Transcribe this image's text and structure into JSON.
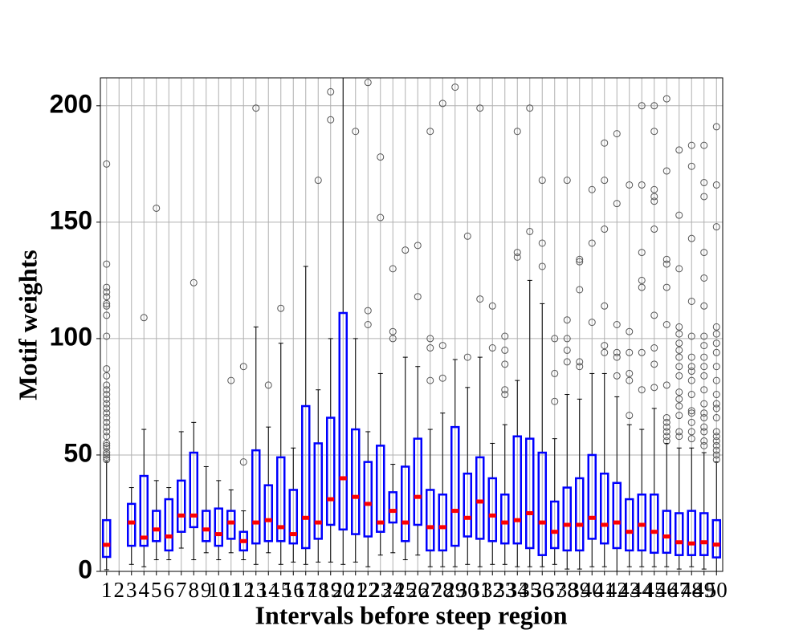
{
  "chart_data": {
    "type": "box",
    "x_label": "Intervals before steep region",
    "y_label": "Motif weights",
    "categories": [
      "1",
      "2",
      "3",
      "4",
      "5",
      "6",
      "7",
      "8",
      "9",
      "10",
      "11",
      "12",
      "13",
      "14",
      "15",
      "16",
      "17",
      "18",
      "19",
      "20",
      "21",
      "22",
      "23",
      "24",
      "25",
      "26",
      "27",
      "28",
      "29",
      "30",
      "31",
      "32",
      "33",
      "34",
      "35",
      "36",
      "37",
      "38",
      "39",
      "40",
      "41",
      "42",
      "43",
      "44",
      "45",
      "46",
      "47",
      "48",
      "49",
      "50"
    ],
    "boxes": [
      {
        "low": 0.7,
        "q1": 6.2,
        "median": 11.4,
        "q3": 22,
        "high": 47,
        "outliers": [
          48,
          49,
          50,
          51,
          53,
          54,
          55,
          58,
          60,
          62,
          64,
          66,
          68,
          70,
          72,
          74,
          76,
          78,
          80,
          84,
          87,
          101,
          110,
          114,
          115,
          118,
          120,
          122,
          132,
          175
        ]
      },
      null,
      {
        "low": 3,
        "q1": 11,
        "median": 21,
        "q3": 29,
        "high": 36,
        "outliers": []
      },
      {
        "low": 2,
        "q1": 11,
        "median": 14.5,
        "q3": 41,
        "high": 61,
        "outliers": [
          109
        ]
      },
      {
        "low": 5,
        "q1": 13,
        "median": 18,
        "q3": 26,
        "high": 39,
        "outliers": [
          156
        ]
      },
      {
        "low": 5,
        "q1": 9,
        "median": 15,
        "q3": 31,
        "high": 36,
        "outliers": []
      },
      {
        "low": 10,
        "q1": 17,
        "median": 24,
        "q3": 39,
        "high": 60,
        "outliers": []
      },
      {
        "low": 5,
        "q1": 19,
        "median": 24,
        "q3": 51,
        "high": 64,
        "outliers": [
          124
        ]
      },
      {
        "low": 8,
        "q1": 13,
        "median": 18,
        "q3": 26,
        "high": 45,
        "outliers": []
      },
      {
        "low": 5,
        "q1": 11,
        "median": 16,
        "q3": 27,
        "high": 39,
        "outliers": []
      },
      {
        "low": 8,
        "q1": 14,
        "median": 21,
        "q3": 26,
        "high": 35,
        "outliers": [
          82
        ]
      },
      {
        "low": 5,
        "q1": 9,
        "median": 13,
        "q3": 17,
        "high": 26,
        "outliers": [
          47,
          88
        ]
      },
      {
        "low": 3,
        "q1": 12,
        "median": 21,
        "q3": 52,
        "high": 105,
        "outliers": [
          199
        ]
      },
      {
        "low": 8,
        "q1": 13,
        "median": 22,
        "q3": 37,
        "high": 62,
        "outliers": [
          80
        ]
      },
      {
        "low": 3,
        "q1": 13,
        "median": 19,
        "q3": 49,
        "high": 98,
        "outliers": [
          113
        ]
      },
      {
        "low": 4,
        "q1": 12,
        "median": 16,
        "q3": 35,
        "high": 53,
        "outliers": []
      },
      {
        "low": 3,
        "q1": 10,
        "median": 23,
        "q3": 71,
        "high": 131,
        "outliers": []
      },
      {
        "low": 4,
        "q1": 14,
        "median": 21,
        "q3": 55,
        "high": 78,
        "outliers": [
          168
        ]
      },
      {
        "low": 4,
        "q1": 20,
        "median": 31,
        "q3": 66,
        "high": 100,
        "outliers": [
          194,
          206
        ]
      },
      {
        "low": 3,
        "q1": 18,
        "median": 40,
        "q3": 111,
        "high": 230,
        "outliers": []
      },
      {
        "low": 4,
        "q1": 16,
        "median": 32,
        "q3": 61,
        "high": 100,
        "outliers": [
          189
        ]
      },
      {
        "low": 2,
        "q1": 15,
        "median": 29,
        "q3": 47,
        "high": 60,
        "outliers": [
          106,
          112,
          210
        ]
      },
      {
        "low": 7,
        "q1": 17,
        "median": 21,
        "q3": 54,
        "high": 85,
        "outliers": [
          152,
          178
        ]
      },
      {
        "low": 8,
        "q1": 21,
        "median": 26,
        "q3": 34,
        "high": 46,
        "outliers": [
          100,
          103,
          130
        ]
      },
      {
        "low": 5,
        "q1": 13,
        "median": 21,
        "q3": 45,
        "high": 92,
        "outliers": [
          138
        ]
      },
      {
        "low": 7,
        "q1": 20,
        "median": 32,
        "q3": 57,
        "high": 88,
        "outliers": [
          118,
          140
        ]
      },
      {
        "low": 2,
        "q1": 9,
        "median": 19,
        "q3": 35,
        "high": 61,
        "outliers": [
          82,
          96,
          100,
          189
        ]
      },
      {
        "low": 2,
        "q1": 9,
        "median": 19,
        "q3": 33,
        "high": 68,
        "outliers": [
          83,
          97,
          201
        ]
      },
      {
        "low": 2,
        "q1": 11,
        "median": 26,
        "q3": 62,
        "high": 91,
        "outliers": [
          208
        ]
      },
      {
        "low": 3,
        "q1": 15,
        "median": 23,
        "q3": 42,
        "high": 79,
        "outliers": [
          92,
          144
        ]
      },
      {
        "low": 2,
        "q1": 14,
        "median": 30,
        "q3": 49,
        "high": 92,
        "outliers": [
          117,
          199
        ]
      },
      {
        "low": 3,
        "q1": 13,
        "median": 24,
        "q3": 40,
        "high": 55,
        "outliers": [
          96,
          114
        ]
      },
      {
        "low": 3,
        "q1": 12,
        "median": 21,
        "q3": 33,
        "high": 63,
        "outliers": [
          76,
          78,
          89,
          95,
          101
        ]
      },
      {
        "low": 2,
        "q1": 12,
        "median": 22,
        "q3": 58,
        "high": 82,
        "outliers": [
          135,
          137,
          189
        ]
      },
      {
        "low": 2,
        "q1": 10,
        "median": 25,
        "q3": 57,
        "high": 125,
        "outliers": [
          146,
          199
        ]
      },
      {
        "low": 2,
        "q1": 7,
        "median": 21,
        "q3": 51,
        "high": 115,
        "outliers": [
          131,
          141,
          168
        ]
      },
      {
        "low": 3,
        "q1": 10,
        "median": 17,
        "q3": 30,
        "high": 57,
        "outliers": [
          73,
          85,
          100
        ]
      },
      {
        "low": 1,
        "q1": 9,
        "median": 20,
        "q3": 36,
        "high": 76,
        "outliers": [
          90,
          95,
          100,
          108,
          168
        ]
      },
      {
        "low": 1,
        "q1": 9,
        "median": 20,
        "q3": 40,
        "high": 74,
        "outliers": [
          88,
          90,
          121,
          133,
          134
        ]
      },
      {
        "low": 2,
        "q1": 14,
        "median": 23,
        "q3": 50,
        "high": 85,
        "outliers": [
          107,
          141,
          164
        ]
      },
      {
        "low": 2,
        "q1": 12,
        "median": 20,
        "q3": 42,
        "high": 85,
        "outliers": [
          94,
          97,
          114,
          147,
          168,
          184
        ]
      },
      {
        "low": 0,
        "q1": 10,
        "median": 21,
        "q3": 38,
        "high": 75,
        "outliers": [
          84,
          92,
          94,
          106,
          158,
          188
        ]
      },
      {
        "low": 2,
        "q1": 9,
        "median": 17,
        "q3": 31,
        "high": 63,
        "outliers": [
          67,
          82,
          85,
          94,
          103,
          166
        ]
      },
      {
        "low": 2,
        "q1": 9,
        "median": 20,
        "q3": 33,
        "high": 61,
        "outliers": [
          78,
          94,
          122,
          125,
          137,
          166,
          200
        ]
      },
      {
        "low": 2,
        "q1": 8,
        "median": 17,
        "q3": 33,
        "high": 70,
        "outliers": [
          79,
          89,
          96,
          110,
          147,
          159,
          161,
          164,
          189,
          200
        ]
      },
      {
        "low": 2,
        "q1": 8,
        "median": 15,
        "q3": 26,
        "high": 55,
        "outliers": [
          56,
          58,
          60,
          62,
          64,
          66,
          80,
          106,
          122,
          132,
          134,
          172,
          203
        ]
      },
      {
        "low": 1,
        "q1": 7,
        "median": 12.5,
        "q3": 25,
        "high": 53,
        "outliers": [
          58,
          60,
          67,
          71,
          74,
          77,
          84,
          88,
          92,
          95,
          98,
          102,
          105,
          130,
          153,
          181
        ]
      },
      {
        "low": 2,
        "q1": 7,
        "median": 12,
        "q3": 26,
        "high": 53,
        "outliers": [
          57,
          60,
          64,
          68,
          69,
          76,
          82,
          86,
          88,
          92,
          101,
          116,
          143,
          174,
          183
        ]
      },
      {
        "low": 1,
        "q1": 7,
        "median": 12.5,
        "q3": 25,
        "high": 51,
        "outliers": [
          54,
          56,
          60,
          62,
          66,
          68,
          72,
          78,
          84,
          88,
          92,
          97,
          101,
          114,
          126,
          137,
          161,
          167,
          183
        ]
      },
      {
        "low": 0,
        "q1": 6,
        "median": 11.5,
        "q3": 22,
        "high": 47,
        "outliers": [
          48,
          50,
          52,
          54,
          56,
          58,
          60,
          66,
          70,
          72,
          76,
          82,
          88,
          94,
          98,
          102,
          105,
          148,
          166,
          191
        ]
      }
    ],
    "box_color": "#0000ff",
    "median_color": "#ff0000",
    "whisker_color": "#000000",
    "outlier_color": "#555555",
    "ylim": [
      0,
      212
    ],
    "yticks": [
      0,
      50,
      100,
      150,
      200
    ],
    "grid": true
  }
}
